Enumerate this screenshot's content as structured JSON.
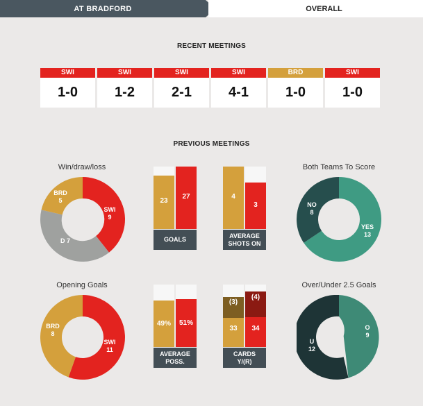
{
  "tabs": {
    "active": "AT BRADFORD",
    "inactive": "OVERALL"
  },
  "colors": {
    "swi": "#e3231f",
    "brd": "#d4a03c",
    "draw": "#9fa19f",
    "dark": "#434e55",
    "teal_dark": "#264e4d",
    "teal": "#3f9b83",
    "teal_ou": "#3e8a76",
    "green_dark": "#1e3436",
    "card_brd": "#7d5e22",
    "card_swi": "#8b1a12"
  },
  "recent": {
    "heading": "RECENT MEETINGS",
    "matches": [
      {
        "team": "SWI",
        "score": "1-0"
      },
      {
        "team": "SWI",
        "score": "1-2"
      },
      {
        "team": "SWI",
        "score": "2-1"
      },
      {
        "team": "SWI",
        "score": "4-1"
      },
      {
        "team": "BRD",
        "score": "1-0"
      },
      {
        "team": "SWI",
        "score": "1-0"
      }
    ]
  },
  "previous": {
    "heading": "PREVIOUS MEETINGS",
    "wdl": {
      "title": "Win/draw/loss",
      "brd_label": "BRD",
      "brd": "5",
      "swi_label": "SWI",
      "swi": "9",
      "draw_label": "D",
      "draw": "7"
    },
    "btts": {
      "title": "Both Teams To Score",
      "no_label": "NO",
      "no": "8",
      "yes_label": "YES",
      "yes": "13"
    },
    "opening": {
      "title": "Opening Goals",
      "brd_label": "BRD",
      "brd": "8",
      "swi_label": "SWI",
      "swi": "11"
    },
    "ou": {
      "title": "Over/Under 2.5 Goals",
      "under_label": "U",
      "under": "12",
      "over_label": "O",
      "over": "9"
    },
    "goals": {
      "caption": "GOALS",
      "brd": "23",
      "swi": "27"
    },
    "shots": {
      "caption_1": "AVERAGE",
      "caption_2": "SHOTS ON",
      "brd": "4",
      "swi": "3"
    },
    "poss": {
      "caption_1": "AVERAGE",
      "caption_2": "POSS.",
      "brd": "49%",
      "swi": "51%"
    },
    "cards": {
      "caption_1": "CARDS",
      "caption_2": "Y/(R)",
      "brd_yellow": "33",
      "swi_yellow": "34",
      "brd_red": "(3)",
      "swi_red": "(4)"
    }
  }
}
